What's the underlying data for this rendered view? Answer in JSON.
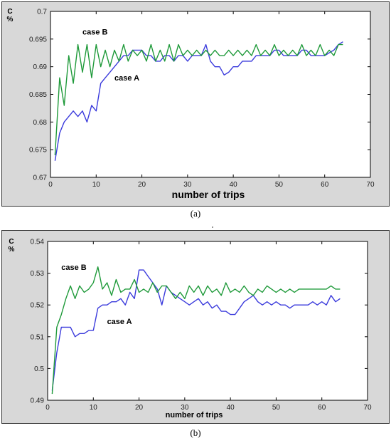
{
  "charts": {
    "a": {
      "y_label_top": "C",
      "y_label_bottom": "%",
      "x_label": "number of trips",
      "caption": "(a)"
    },
    "b": {
      "y_label_top": "C",
      "y_label_bottom": "%",
      "x_label": "number of trips",
      "caption": "(b)"
    }
  },
  "colors": {
    "case_a": "#3b3bdc",
    "case_b": "#1f9a3a",
    "panel_frame": "#d8d8d8",
    "plot_bg": "#ffffff"
  },
  "chart_data": [
    {
      "type": "line",
      "xlim": [
        0,
        70
      ],
      "ylim": [
        0.67,
        0.7
      ],
      "xticks": [
        0,
        10,
        20,
        30,
        40,
        50,
        60,
        70
      ],
      "yticks": [
        0.67,
        0.675,
        0.68,
        0.685,
        0.69,
        0.695,
        0.7
      ],
      "xlabel": "number of trips",
      "ylabel": "C %",
      "grid": false,
      "annotations": [
        {
          "text": "case B",
          "x": 7,
          "y": 0.6958
        },
        {
          "text": "case A",
          "x": 14,
          "y": 0.6875
        }
      ],
      "series": [
        {
          "name": "case A",
          "color": "#3b3bdc",
          "x": [
            1,
            2,
            3,
            4,
            5,
            6,
            7,
            8,
            9,
            10,
            11,
            12,
            13,
            14,
            15,
            16,
            17,
            18,
            19,
            20,
            21,
            22,
            23,
            24,
            25,
            26,
            27,
            28,
            29,
            30,
            31,
            32,
            33,
            34,
            35,
            36,
            37,
            38,
            39,
            40,
            41,
            42,
            43,
            44,
            45,
            46,
            47,
            48,
            49,
            50,
            51,
            52,
            53,
            54,
            55,
            56,
            57,
            58,
            59,
            60,
            61,
            62,
            63,
            64
          ],
          "y": [
            0.673,
            0.678,
            0.68,
            0.681,
            0.682,
            0.681,
            0.682,
            0.68,
            0.683,
            0.682,
            0.687,
            0.688,
            0.689,
            0.69,
            0.691,
            0.692,
            0.692,
            0.693,
            0.693,
            0.693,
            0.692,
            0.692,
            0.691,
            0.691,
            0.692,
            0.692,
            0.691,
            0.692,
            0.692,
            0.691,
            0.692,
            0.692,
            0.692,
            0.694,
            0.691,
            0.69,
            0.69,
            0.6885,
            0.689,
            0.69,
            0.69,
            0.691,
            0.691,
            0.691,
            0.692,
            0.692,
            0.692,
            0.692,
            0.693,
            0.693,
            0.692,
            0.692,
            0.692,
            0.692,
            0.693,
            0.693,
            0.692,
            0.692,
            0.692,
            0.692,
            0.6925,
            0.693,
            0.694,
            0.6945
          ]
        },
        {
          "name": "case B",
          "color": "#1f9a3a",
          "x": [
            1,
            2,
            3,
            4,
            5,
            6,
            7,
            8,
            9,
            10,
            11,
            12,
            13,
            14,
            15,
            16,
            17,
            18,
            19,
            20,
            21,
            22,
            23,
            24,
            25,
            26,
            27,
            28,
            29,
            30,
            31,
            32,
            33,
            34,
            35,
            36,
            37,
            38,
            39,
            40,
            41,
            42,
            43,
            44,
            45,
            46,
            47,
            48,
            49,
            50,
            51,
            52,
            53,
            54,
            55,
            56,
            57,
            58,
            59,
            60,
            61,
            62,
            63,
            64
          ],
          "y": [
            0.674,
            0.688,
            0.683,
            0.692,
            0.687,
            0.694,
            0.689,
            0.694,
            0.688,
            0.694,
            0.69,
            0.693,
            0.69,
            0.693,
            0.691,
            0.694,
            0.691,
            0.693,
            0.692,
            0.693,
            0.691,
            0.694,
            0.691,
            0.693,
            0.691,
            0.694,
            0.691,
            0.694,
            0.692,
            0.693,
            0.692,
            0.693,
            0.692,
            0.693,
            0.692,
            0.693,
            0.692,
            0.692,
            0.693,
            0.692,
            0.693,
            0.692,
            0.693,
            0.692,
            0.694,
            0.692,
            0.693,
            0.692,
            0.694,
            0.692,
            0.693,
            0.692,
            0.693,
            0.692,
            0.694,
            0.692,
            0.693,
            0.692,
            0.694,
            0.692,
            0.693,
            0.692,
            0.694,
            0.694
          ]
        }
      ]
    },
    {
      "type": "line",
      "xlim": [
        0,
        70
      ],
      "ylim": [
        0.49,
        0.54
      ],
      "xticks": [
        0,
        10,
        20,
        30,
        40,
        50,
        60,
        70
      ],
      "yticks": [
        0.49,
        0.5,
        0.51,
        0.52,
        0.53,
        0.54
      ],
      "xlabel": "number of trips",
      "ylabel": "C %",
      "grid": false,
      "annotations": [
        {
          "text": "case B",
          "x": 3,
          "y": 0.531
        },
        {
          "text": "case A",
          "x": 13,
          "y": 0.514
        }
      ],
      "series": [
        {
          "name": "case A",
          "color": "#3b3bdc",
          "x": [
            1,
            2,
            3,
            4,
            5,
            6,
            7,
            8,
            9,
            10,
            11,
            12,
            13,
            14,
            15,
            16,
            17,
            18,
            19,
            20,
            21,
            22,
            23,
            24,
            25,
            26,
            27,
            28,
            29,
            30,
            31,
            32,
            33,
            34,
            35,
            36,
            37,
            38,
            39,
            40,
            41,
            42,
            43,
            44,
            45,
            46,
            47,
            48,
            49,
            50,
            51,
            52,
            53,
            54,
            55,
            56,
            57,
            58,
            59,
            60,
            61,
            62,
            63,
            64
          ],
          "y": [
            0.493,
            0.505,
            0.513,
            0.513,
            0.513,
            0.51,
            0.511,
            0.511,
            0.512,
            0.512,
            0.519,
            0.52,
            0.52,
            0.521,
            0.521,
            0.522,
            0.52,
            0.524,
            0.522,
            0.531,
            0.531,
            0.529,
            0.527,
            0.525,
            0.52,
            0.526,
            0.524,
            0.523,
            0.522,
            0.521,
            0.52,
            0.521,
            0.522,
            0.52,
            0.521,
            0.519,
            0.52,
            0.518,
            0.518,
            0.517,
            0.517,
            0.519,
            0.521,
            0.522,
            0.523,
            0.521,
            0.52,
            0.521,
            0.52,
            0.521,
            0.52,
            0.52,
            0.519,
            0.52,
            0.52,
            0.52,
            0.52,
            0.521,
            0.52,
            0.521,
            0.52,
            0.523,
            0.521,
            0.522
          ]
        },
        {
          "name": "case B",
          "color": "#1f9a3a",
          "x": [
            1,
            2,
            3,
            4,
            5,
            6,
            7,
            8,
            9,
            10,
            11,
            12,
            13,
            14,
            15,
            16,
            17,
            18,
            19,
            20,
            21,
            22,
            23,
            24,
            25,
            26,
            27,
            28,
            29,
            30,
            31,
            32,
            33,
            34,
            35,
            36,
            37,
            38,
            39,
            40,
            41,
            42,
            43,
            44,
            45,
            46,
            47,
            48,
            49,
            50,
            51,
            52,
            53,
            54,
            55,
            56,
            57,
            58,
            59,
            60,
            61,
            62,
            63,
            64
          ],
          "y": [
            0.492,
            0.513,
            0.517,
            0.522,
            0.526,
            0.522,
            0.526,
            0.524,
            0.525,
            0.527,
            0.532,
            0.525,
            0.527,
            0.523,
            0.528,
            0.524,
            0.525,
            0.525,
            0.528,
            0.524,
            0.525,
            0.524,
            0.527,
            0.524,
            0.526,
            0.526,
            0.524,
            0.522,
            0.524,
            0.522,
            0.526,
            0.524,
            0.526,
            0.523,
            0.526,
            0.524,
            0.525,
            0.523,
            0.527,
            0.524,
            0.525,
            0.524,
            0.526,
            0.524,
            0.523,
            0.525,
            0.524,
            0.526,
            0.525,
            0.524,
            0.525,
            0.524,
            0.525,
            0.524,
            0.525,
            0.525,
            0.525,
            0.525,
            0.525,
            0.525,
            0.525,
            0.526,
            0.525,
            0.525
          ]
        }
      ]
    }
  ]
}
